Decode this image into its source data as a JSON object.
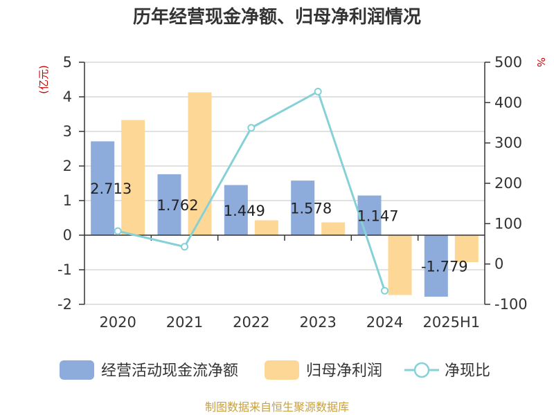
{
  "chart_data": {
    "type": "bar",
    "title": "历年经营现金净额、归母净利润情况",
    "categories": [
      "2020",
      "2021",
      "2022",
      "2023",
      "2024",
      "2025H1"
    ],
    "left_axis": {
      "unit": "(亿元)",
      "ylim": [
        -2,
        5
      ],
      "ticks": [
        "5",
        "4",
        "3",
        "2",
        "1",
        "0",
        "-1",
        "-2"
      ],
      "tick_values": [
        5,
        4,
        3,
        2,
        1,
        0,
        -1,
        -2
      ]
    },
    "right_axis": {
      "unit": "%",
      "ylim": [
        -100,
        500
      ],
      "ticks": [
        "500",
        "400",
        "300",
        "200",
        "100",
        "0",
        "-100"
      ],
      "tick_values": [
        500,
        400,
        300,
        200,
        100,
        0,
        -100
      ]
    },
    "series": [
      {
        "name": "经营活动现金流净额",
        "type": "bar",
        "axis": "left",
        "color": "#8eacdb",
        "values": [
          2.713,
          1.762,
          1.449,
          1.578,
          1.147,
          -1.779
        ],
        "labels": [
          "2.713",
          "1.762",
          "1.449",
          "1.578",
          "1.147",
          "-1.779"
        ]
      },
      {
        "name": "归母净利润",
        "type": "bar",
        "axis": "left",
        "color": "#fdd796",
        "values": [
          3.33,
          4.13,
          0.43,
          0.37,
          -1.73,
          -0.78
        ]
      },
      {
        "name": "净现比",
        "type": "line",
        "axis": "right",
        "color": "#86d1d8",
        "values": [
          81.5,
          42.7,
          337.5,
          427.3,
          -66.3,
          null
        ]
      }
    ],
    "grid": true,
    "legend_position": "bottom"
  },
  "source": "制图数据来自恒生聚源数据库"
}
